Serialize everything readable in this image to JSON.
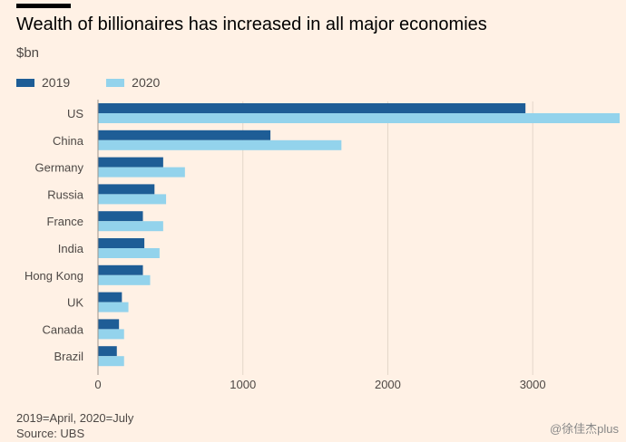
{
  "header": {
    "title": "Wealth of billionaires has increased in all major economies",
    "unit": "$bn"
  },
  "footer": {
    "note": "2019=April, 2020=July",
    "source": "Source: UBS"
  },
  "watermark": "@徐佳杰plus",
  "colors": {
    "s2019": "#1e5d96",
    "s2020": "#93d3ec",
    "grid": "#e3d6c9",
    "axis": "#9c958d"
  },
  "chart_data": {
    "type": "bar",
    "orientation": "horizontal",
    "categories": [
      "US",
      "China",
      "Germany",
      "Russia",
      "France",
      "India",
      "Hong Kong",
      "UK",
      "Canada",
      "Brazil"
    ],
    "series": [
      {
        "name": "2019",
        "values": [
          2950,
          1190,
          450,
          390,
          310,
          320,
          310,
          165,
          145,
          130
        ]
      },
      {
        "name": "2020",
        "values": [
          3600,
          1680,
          600,
          470,
          450,
          425,
          360,
          210,
          180,
          180
        ]
      }
    ],
    "xlim": [
      0,
      3600
    ],
    "xticks": [
      0,
      1000,
      2000,
      3000
    ],
    "grid": true,
    "legend": "top-left"
  }
}
